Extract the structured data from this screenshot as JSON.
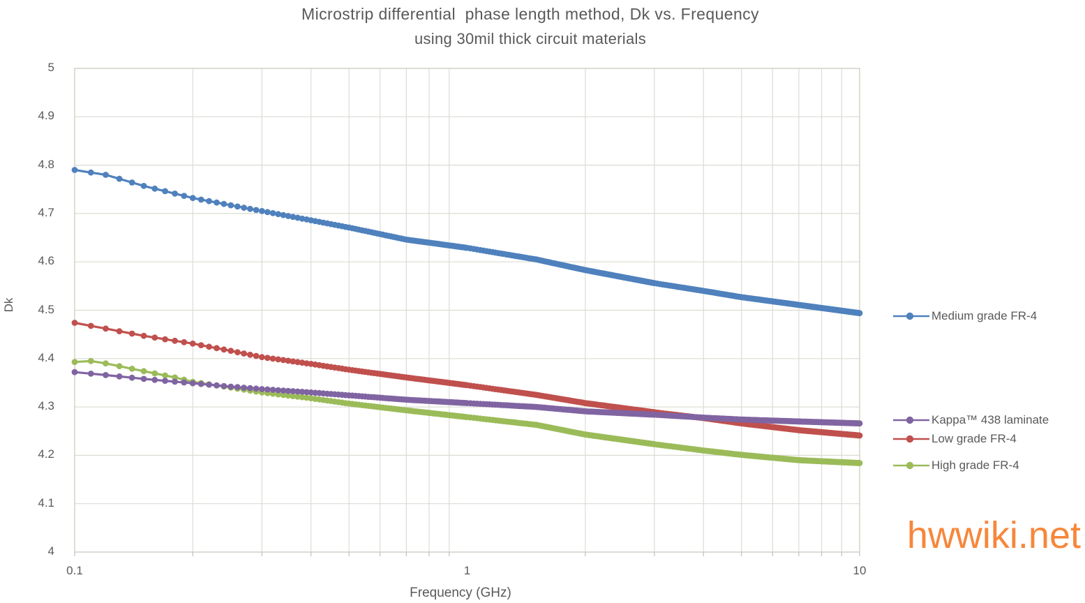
{
  "watermark": {
    "text": "hwwiki.net",
    "color": "#F6873B"
  },
  "chart_data": {
    "type": "line",
    "title": "Microstrip differential  phase length method, Dk vs. Frequency",
    "subtitle": "using 30mil thick circuit materials",
    "xlabel": "Frequency (GHz)",
    "ylabel": "Dk",
    "x_scale": "log",
    "xlim": [
      0.1,
      10
    ],
    "ylim": [
      4,
      5
    ],
    "grid": {
      "color": "#DCDCD4",
      "frame_color": "#CFCFC5",
      "tick_color": "#BFBFBF"
    },
    "x_ticks": [
      {
        "value": 0.1,
        "label": "0.1"
      },
      {
        "value": 1,
        "label": "1"
      },
      {
        "value": 10,
        "label": "10"
      }
    ],
    "y_ticks": [
      {
        "value": 5,
        "label": "5"
      },
      {
        "value": 4.9,
        "label": "4.9"
      },
      {
        "value": 4.8,
        "label": "4.8"
      },
      {
        "value": 4.7,
        "label": "4.7"
      },
      {
        "value": 4.6,
        "label": "4.6"
      },
      {
        "value": 4.5,
        "label": "4.5"
      },
      {
        "value": 4.4,
        "label": "4.4"
      },
      {
        "value": 4.3,
        "label": "4.3"
      },
      {
        "value": 4.2,
        "label": "4.2"
      },
      {
        "value": 4.1,
        "label": "4.1"
      },
      {
        "value": 4,
        "label": "4"
      }
    ],
    "legend_position": "right",
    "series": [
      {
        "name": "Medium grade FR-4",
        "color": "#4F81BD",
        "points": [
          [
            0.1,
            4.79
          ],
          [
            0.12,
            4.78
          ],
          [
            0.15,
            4.757
          ],
          [
            0.2,
            4.732
          ],
          [
            0.25,
            4.717
          ],
          [
            0.3,
            4.705
          ],
          [
            0.4,
            4.686
          ],
          [
            0.5,
            4.671
          ],
          [
            0.7,
            4.646
          ],
          [
            1.0,
            4.629
          ],
          [
            1.5,
            4.605
          ],
          [
            2.0,
            4.583
          ],
          [
            3.0,
            4.556
          ],
          [
            4.0,
            4.54
          ],
          [
            5.0,
            4.527
          ],
          [
            7.0,
            4.511
          ],
          [
            10.0,
            4.494
          ]
        ]
      },
      {
        "name": "Kappa™ 438 laminate",
        "color": "#8064A2",
        "points": [
          [
            0.1,
            4.372
          ],
          [
            0.12,
            4.366
          ],
          [
            0.15,
            4.358
          ],
          [
            0.2,
            4.349
          ],
          [
            0.25,
            4.342
          ],
          [
            0.3,
            4.337
          ],
          [
            0.4,
            4.33
          ],
          [
            0.5,
            4.324
          ],
          [
            0.7,
            4.315
          ],
          [
            1.0,
            4.308
          ],
          [
            1.5,
            4.3
          ],
          [
            2.0,
            4.291
          ],
          [
            3.0,
            4.284
          ],
          [
            4.0,
            4.278
          ],
          [
            5.0,
            4.274
          ],
          [
            7.0,
            4.27
          ],
          [
            10.0,
            4.266
          ]
        ]
      },
      {
        "name": "Low grade FR-4",
        "color": "#C0504D",
        "points": [
          [
            0.1,
            4.474
          ],
          [
            0.12,
            4.462
          ],
          [
            0.15,
            4.447
          ],
          [
            0.2,
            4.431
          ],
          [
            0.25,
            4.416
          ],
          [
            0.3,
            4.403
          ],
          [
            0.4,
            4.389
          ],
          [
            0.5,
            4.377
          ],
          [
            0.7,
            4.361
          ],
          [
            1.0,
            4.345
          ],
          [
            1.5,
            4.325
          ],
          [
            2.0,
            4.308
          ],
          [
            3.0,
            4.289
          ],
          [
            4.0,
            4.277
          ],
          [
            5.0,
            4.266
          ],
          [
            7.0,
            4.252
          ],
          [
            10.0,
            4.241
          ]
        ]
      },
      {
        "name": "High grade FR-4",
        "color": "#9BBB59",
        "points": [
          [
            0.1,
            4.393
          ],
          [
            0.11,
            4.395
          ],
          [
            0.12,
            4.39
          ],
          [
            0.15,
            4.374
          ],
          [
            0.18,
            4.361
          ],
          [
            0.2,
            4.352
          ],
          [
            0.25,
            4.34
          ],
          [
            0.3,
            4.33
          ],
          [
            0.4,
            4.318
          ],
          [
            0.5,
            4.307
          ],
          [
            0.7,
            4.293
          ],
          [
            1.0,
            4.279
          ],
          [
            1.5,
            4.263
          ],
          [
            2.0,
            4.243
          ],
          [
            3.0,
            4.223
          ],
          [
            4.0,
            4.21
          ],
          [
            5.0,
            4.201
          ],
          [
            7.0,
            4.19
          ],
          [
            10.0,
            4.184
          ]
        ]
      }
    ]
  }
}
